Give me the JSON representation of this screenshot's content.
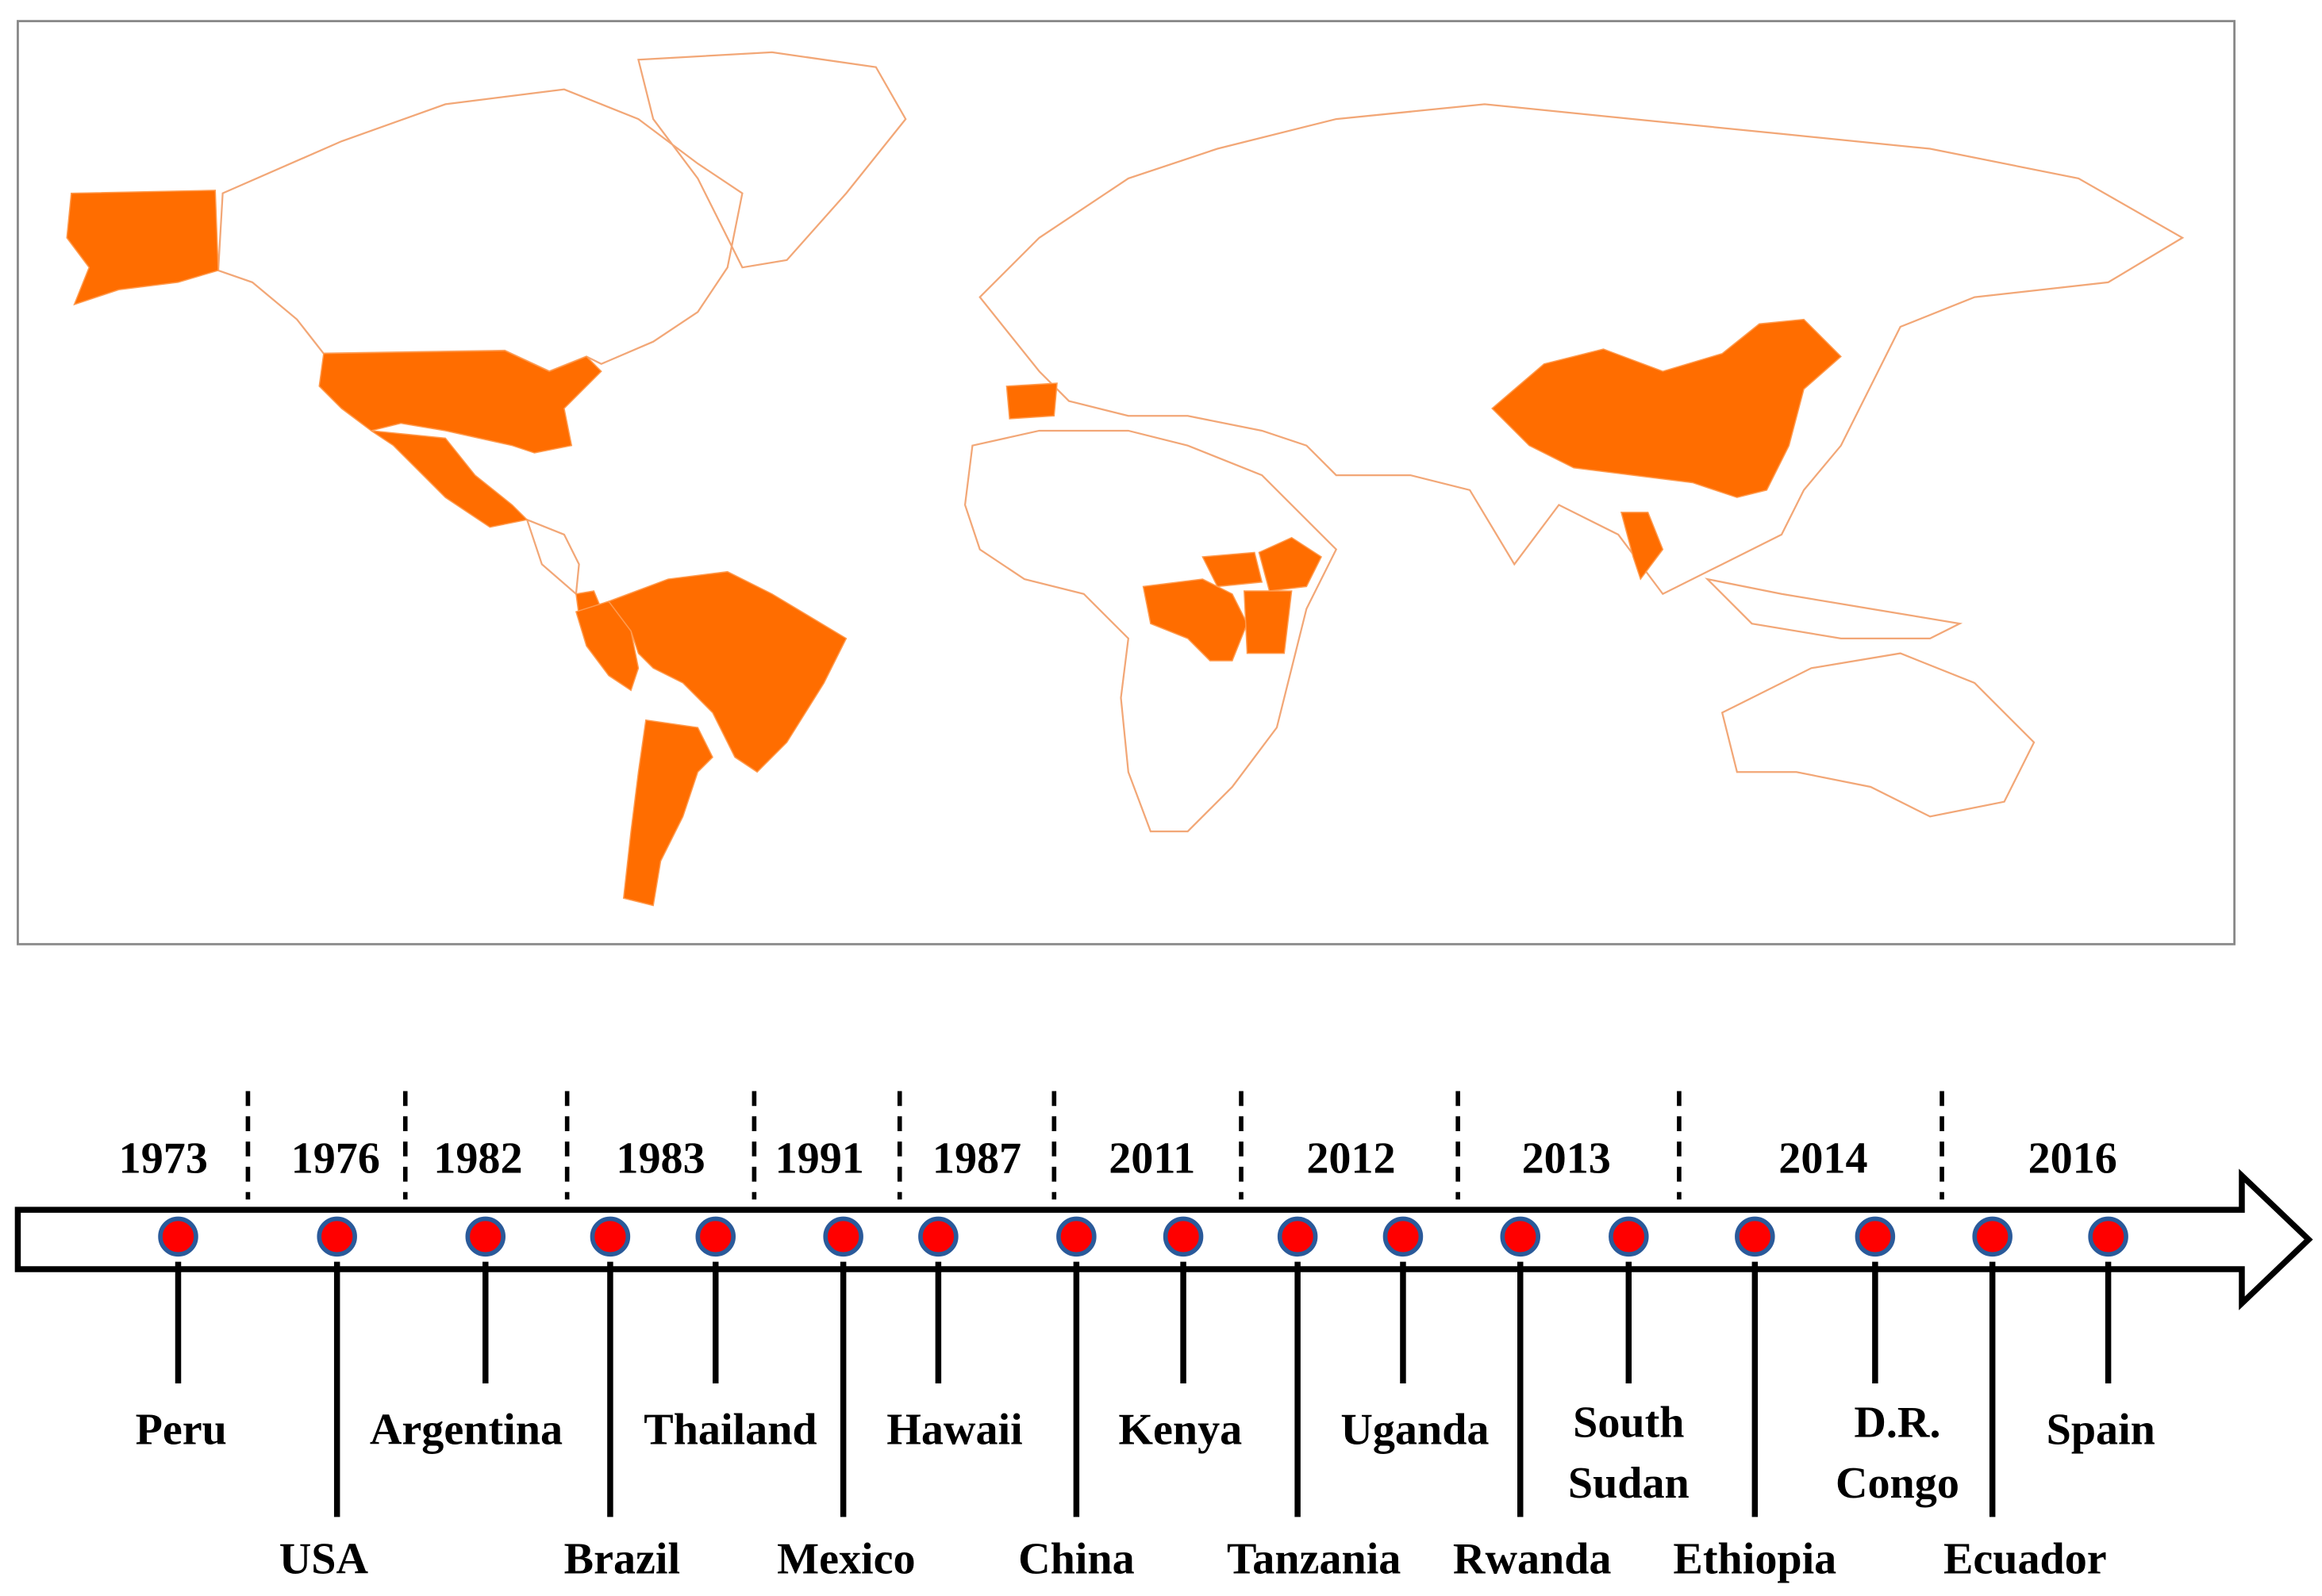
{
  "timeline": {
    "years": [
      "1973",
      "1976",
      "1982",
      "1983",
      "1991",
      "1987",
      "2011",
      "2012",
      "2013",
      "2014",
      "2016"
    ],
    "countries": [
      {
        "lines": [
          "Peru"
        ]
      },
      {
        "lines": [
          "USA"
        ]
      },
      {
        "lines": [
          "Argentina"
        ]
      },
      {
        "lines": [
          "Brazil"
        ]
      },
      {
        "lines": [
          "Thailand"
        ]
      },
      {
        "lines": [
          "Mexico"
        ]
      },
      {
        "lines": [
          "Hawaii"
        ]
      },
      {
        "lines": [
          "China"
        ]
      },
      {
        "lines": [
          "Kenya"
        ]
      },
      {
        "lines": [
          "Tanzania"
        ]
      },
      {
        "lines": [
          "Uganda"
        ]
      },
      {
        "lines": [
          "Rwanda"
        ]
      },
      {
        "lines": [
          "South",
          "Sudan"
        ]
      },
      {
        "lines": [
          "Ethiopia"
        ]
      },
      {
        "lines": [
          "D.R.",
          "Congo"
        ]
      },
      {
        "lines": [
          "Ecuador"
        ]
      },
      {
        "lines": [
          "Spain"
        ]
      }
    ]
  }
}
